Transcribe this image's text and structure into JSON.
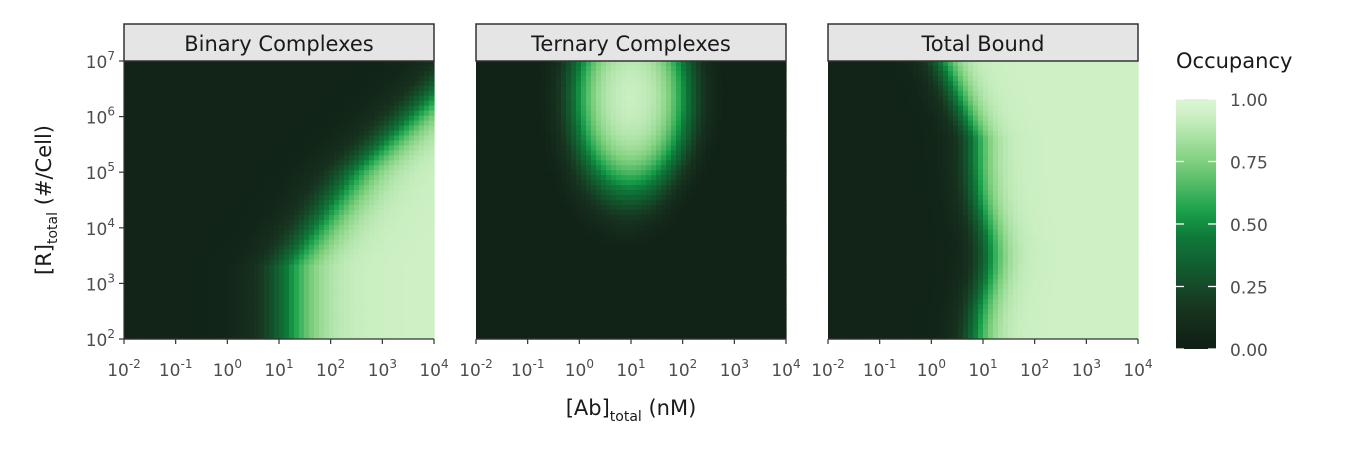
{
  "chart_data": {
    "type": "heatmap",
    "panels": [
      {
        "title": "Binary Complexes",
        "model": "binary"
      },
      {
        "title": "Ternary Complexes",
        "model": "ternary"
      },
      {
        "title": "Total Bound",
        "model": "total"
      }
    ],
    "x": {
      "label_main": "[Ab]",
      "label_sub": "total",
      "label_unit": " (nM)",
      "scale": "log10",
      "range": [
        0.01,
        10000
      ],
      "ticks": [
        {
          "base": "10",
          "exp": "-2"
        },
        {
          "base": "10",
          "exp": "-1"
        },
        {
          "base": "10",
          "exp": "0"
        },
        {
          "base": "10",
          "exp": "1"
        },
        {
          "base": "10",
          "exp": "2"
        },
        {
          "base": "10",
          "exp": "3"
        },
        {
          "base": "10",
          "exp": "4"
        }
      ]
    },
    "y": {
      "label_main": "[R]",
      "label_sub": "total",
      "label_unit": " (#/Cell)",
      "scale": "log10",
      "range": [
        100,
        10000000
      ],
      "ticks": [
        {
          "base": "10",
          "exp": "2"
        },
        {
          "base": "10",
          "exp": "3"
        },
        {
          "base": "10",
          "exp": "4"
        },
        {
          "base": "10",
          "exp": "5"
        },
        {
          "base": "10",
          "exp": "6"
        },
        {
          "base": "10",
          "exp": "7"
        }
      ]
    },
    "legend": {
      "title": "Occupancy",
      "position": "right",
      "range": [
        0,
        1
      ],
      "ticks": [
        "0.00",
        "0.25",
        "0.50",
        "0.75",
        "1.00"
      ],
      "colors": [
        "#0f1f14",
        "#17321f",
        "#0e7a3a",
        "#1aa04a",
        "#7fd07e",
        "#cdf0c4",
        "#dbf5d4"
      ]
    },
    "grid": false
  }
}
